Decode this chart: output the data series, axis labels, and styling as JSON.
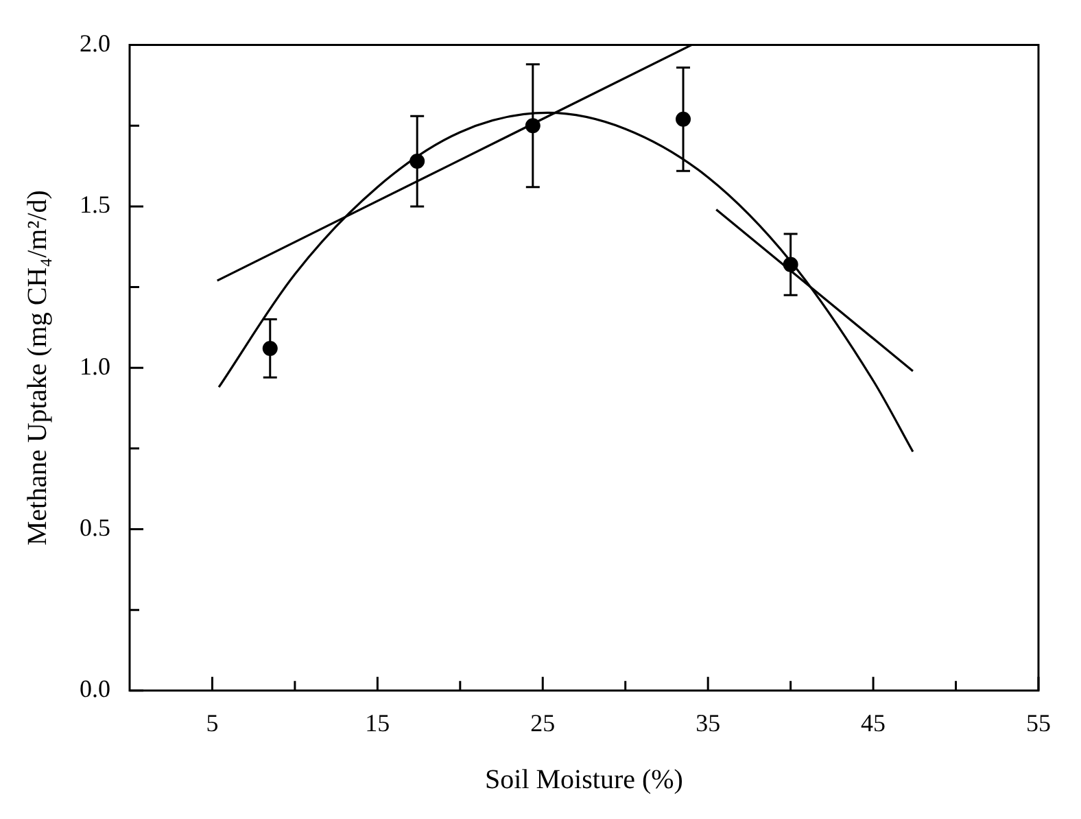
{
  "chart_data": {
    "type": "scatter",
    "xlabel": "Soil Moisture (%)",
    "ylabel": "Methane Uptake (mg CH₄/m²/d)",
    "xlim": [
      0,
      55
    ],
    "ylim": [
      0,
      2.0
    ],
    "xticks": [
      5,
      {
        "value": 10,
        "label": null
      },
      15,
      {
        "value": 20,
        "label": null
      },
      25,
      {
        "value": 30,
        "label": null
      },
      35,
      {
        "value": 40,
        "label": null
      },
      45,
      {
        "value": 50,
        "label": null
      },
      55
    ],
    "yticks": [
      {
        "value": 0,
        "label": "0.0"
      },
      {
        "value": 0.25,
        "label": null
      },
      {
        "value": 0.5,
        "label": "0.5"
      },
      {
        "value": 0.75,
        "label": null
      },
      {
        "value": 1.0,
        "label": "1.0"
      },
      {
        "value": 1.25,
        "label": null
      },
      {
        "value": 1.5,
        "label": "1.5"
      },
      {
        "value": 1.75,
        "label": null
      },
      {
        "value": 2.0,
        "label": "2.0"
      }
    ],
    "grid": false,
    "legend": false,
    "marker": "circle",
    "series": [
      {
        "color": "#000000",
        "x": [
          8.5,
          17.4,
          24.4,
          33.5,
          40.0
        ],
        "values": [
          1.06,
          1.64,
          1.75,
          1.77,
          1.32
        ],
        "errors": [
          0.09,
          0.14,
          0.19,
          0.16,
          0.095
        ]
      },
      {
        "type": "line",
        "color": "#000000",
        "marker": "none",
        "line_style": "solid",
        "x": [
          5.4,
          10,
          15,
          20,
          25.3,
          30,
          35,
          40,
          45,
          47.4
        ],
        "values": [
          0.94,
          1.29,
          1.56,
          1.73,
          1.79,
          1.74,
          1.59,
          1.33,
          0.96,
          0.74
        ]
      },
      {
        "type": "line",
        "color": "#000000",
        "marker": "none",
        "line_style": "solid",
        "x": [
          5.3,
          34.0
        ],
        "values": [
          1.27,
          2.0
        ]
      },
      {
        "type": "line",
        "color": "#000000",
        "marker": "none",
        "line_style": "solid",
        "x": [
          35.5,
          47.4
        ],
        "values": [
          1.49,
          0.99
        ]
      }
    ]
  }
}
